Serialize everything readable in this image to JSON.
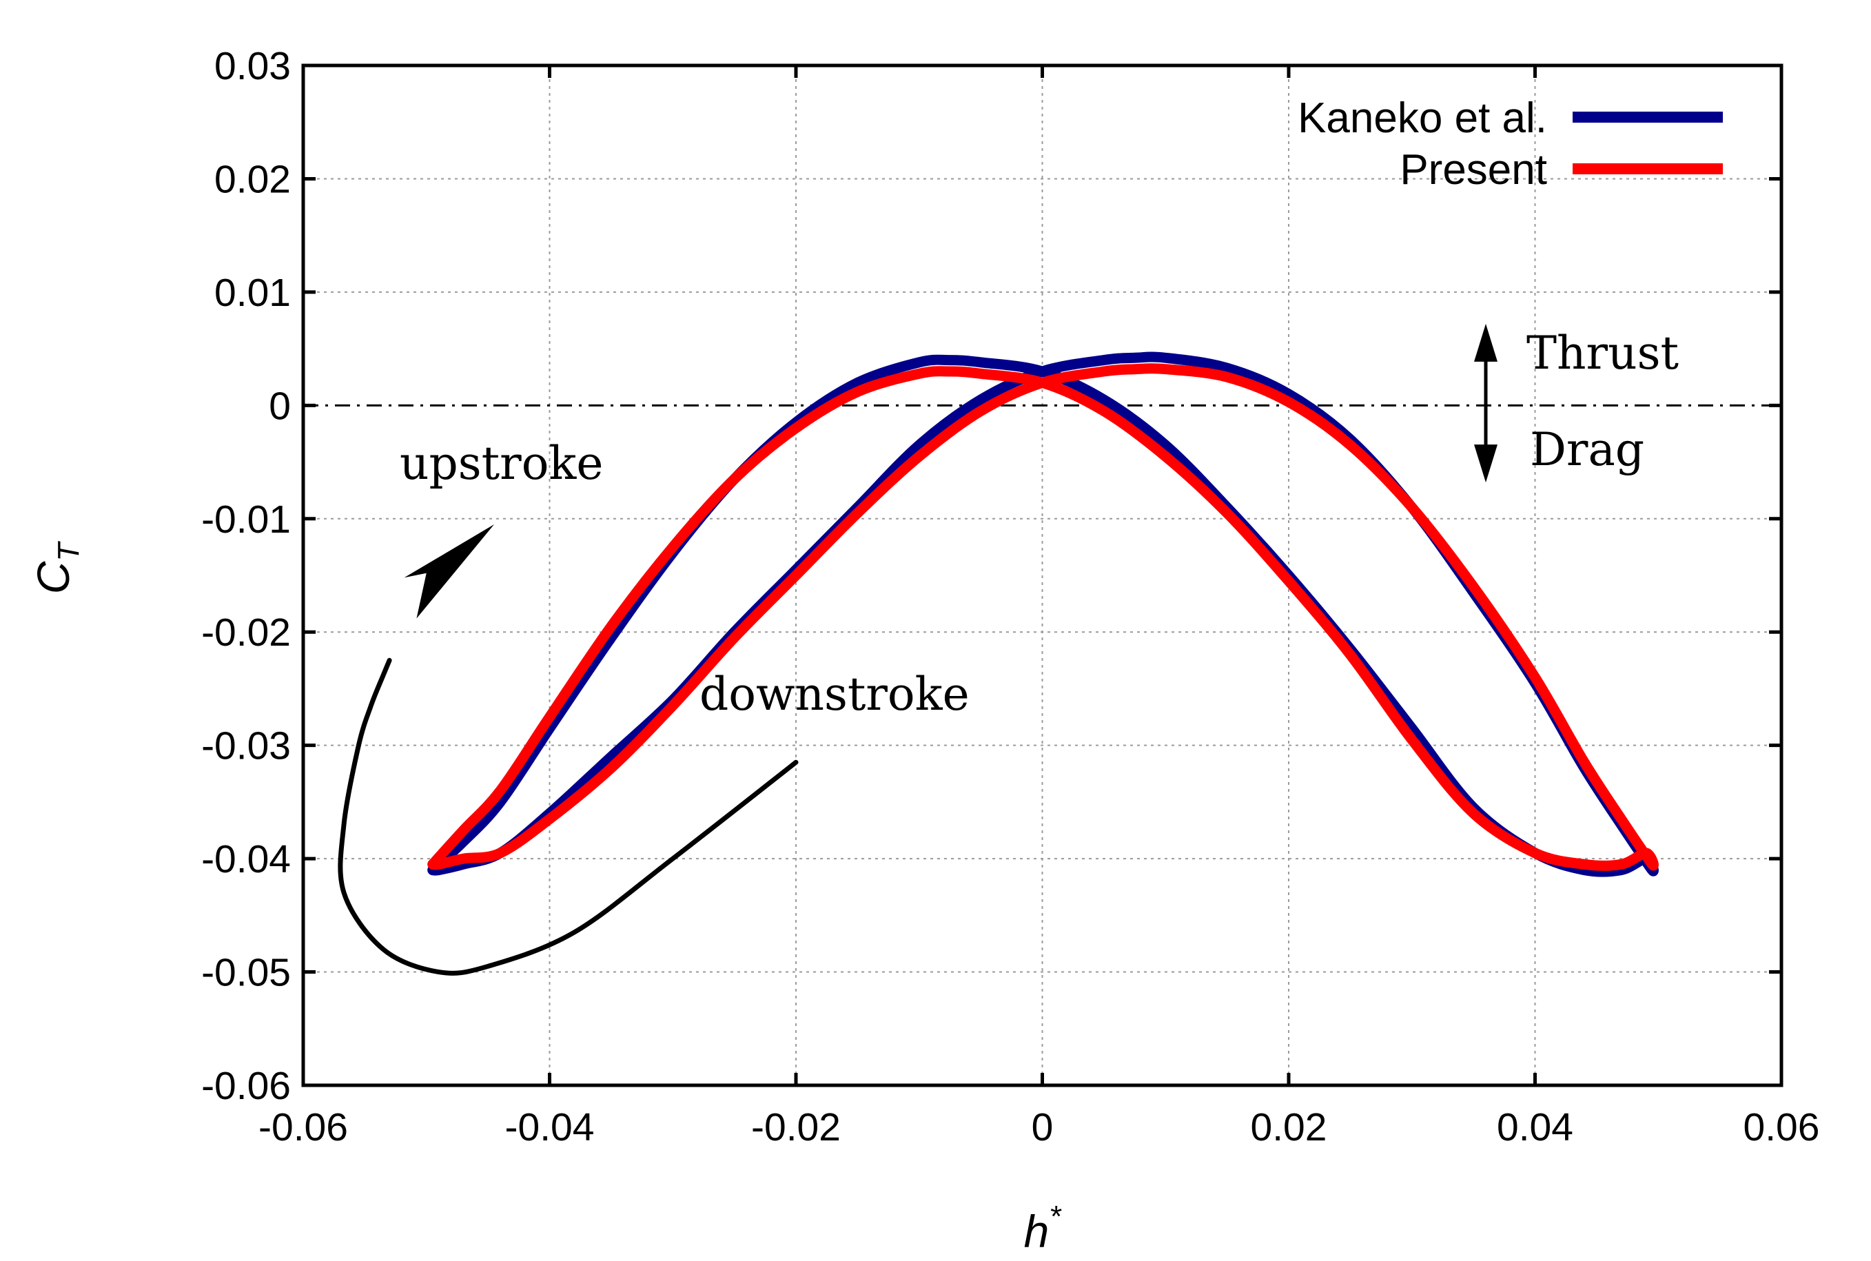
{
  "chart_data": {
    "type": "line",
    "xlabel_base": "h",
    "xlabel_sup": "*",
    "ylabel_base": "C",
    "ylabel_sub": "T",
    "xlim": [
      -0.06,
      0.06
    ],
    "ylim": [
      -0.06,
      0.03
    ],
    "xticks": [
      -0.06,
      -0.04,
      -0.02,
      0,
      0.02,
      0.04,
      0.06
    ],
    "xtick_labels": [
      "-0.06",
      "-0.04",
      "-0.02",
      "0",
      "0.02",
      "0.04",
      "0.06"
    ],
    "yticks": [
      0.03,
      0.02,
      0.01,
      0,
      -0.01,
      -0.02,
      -0.03,
      -0.04,
      -0.05,
      -0.06
    ],
    "ytick_labels": [
      "0.03",
      "0.02",
      "0.01",
      "0",
      "-0.01",
      "-0.02",
      "-0.03",
      "-0.04",
      "-0.05",
      "-0.06"
    ],
    "grid": true,
    "legend_position": "top-right",
    "series": [
      {
        "name": "Kaneko et al.",
        "color": "#00008b",
        "x": [
          -0.0495,
          -0.047,
          -0.044,
          -0.04,
          -0.035,
          -0.03,
          -0.025,
          -0.02,
          -0.015,
          -0.01,
          -0.0075,
          -0.005,
          0,
          0.005,
          0.01,
          0.015,
          0.02,
          0.025,
          0.03,
          0.035,
          0.04,
          0.044,
          0.047,
          0.049,
          0.0495,
          0.047,
          0.044,
          0.04,
          0.035,
          0.03,
          0.025,
          0.02,
          0.015,
          0.01,
          0.0075,
          0.005,
          0,
          -0.005,
          -0.01,
          -0.015,
          -0.02,
          -0.025,
          -0.03,
          -0.035,
          -0.04,
          -0.044,
          -0.047,
          -0.049,
          -0.0495
        ],
        "y": [
          -0.041,
          -0.0385,
          -0.035,
          -0.0285,
          -0.0205,
          -0.013,
          -0.0065,
          -0.0015,
          0.002,
          0.0038,
          0.004,
          0.0038,
          0.003,
          0.0005,
          -0.0035,
          -0.009,
          -0.015,
          -0.0215,
          -0.0285,
          -0.0355,
          -0.0395,
          -0.041,
          -0.041,
          -0.04,
          -0.041,
          -0.037,
          -0.032,
          -0.0245,
          -0.0165,
          -0.009,
          -0.003,
          0.001,
          0.0033,
          0.0042,
          0.0042,
          0.004,
          0.003,
          0.0005,
          -0.0035,
          -0.009,
          -0.0145,
          -0.02,
          -0.026,
          -0.031,
          -0.036,
          -0.0395,
          -0.0405,
          -0.041,
          -0.041
        ]
      },
      {
        "name": "Present",
        "color": "#ff0000",
        "x": [
          -0.0495,
          -0.047,
          -0.044,
          -0.04,
          -0.035,
          -0.03,
          -0.025,
          -0.02,
          -0.015,
          -0.01,
          -0.0075,
          -0.005,
          0,
          0.005,
          0.01,
          0.015,
          0.02,
          0.025,
          0.03,
          0.035,
          0.04,
          0.044,
          0.047,
          0.049,
          0.0495,
          0.047,
          0.044,
          0.04,
          0.035,
          0.03,
          0.025,
          0.02,
          0.015,
          0.01,
          0.0075,
          0.005,
          0,
          -0.005,
          -0.01,
          -0.015,
          -0.02,
          -0.025,
          -0.03,
          -0.035,
          -0.04,
          -0.044,
          -0.047,
          -0.049,
          -0.0495
        ],
        "y": [
          -0.0405,
          -0.0375,
          -0.034,
          -0.0275,
          -0.0195,
          -0.0125,
          -0.0065,
          -0.002,
          0.0012,
          0.0028,
          0.003,
          0.0028,
          0.002,
          -0.0005,
          -0.0045,
          -0.0095,
          -0.0155,
          -0.022,
          -0.0295,
          -0.036,
          -0.0395,
          -0.0405,
          -0.0405,
          -0.0395,
          -0.0405,
          -0.0365,
          -0.0315,
          -0.024,
          -0.016,
          -0.009,
          -0.0035,
          0.0003,
          0.0025,
          0.0032,
          0.0032,
          0.003,
          0.002,
          -0.0005,
          -0.0045,
          -0.0095,
          -0.015,
          -0.0205,
          -0.0265,
          -0.032,
          -0.0365,
          -0.0395,
          -0.04,
          -0.0405,
          -0.0405
        ]
      }
    ],
    "annotations": {
      "upstroke": "upstroke",
      "downstroke": "downstroke",
      "thrust": "Thrust",
      "drag": "Drag"
    },
    "arrow_path": [
      [
        -0.02,
        -0.0315
      ],
      [
        -0.03,
        -0.04
      ],
      [
        -0.038,
        -0.0465
      ],
      [
        -0.045,
        -0.0495
      ],
      [
        -0.049,
        -0.05
      ],
      [
        -0.0535,
        -0.048
      ],
      [
        -0.0567,
        -0.043
      ],
      [
        -0.0567,
        -0.037
      ],
      [
        -0.0555,
        -0.03
      ],
      [
        -0.0545,
        -0.0265
      ],
      [
        -0.0535,
        -0.0238
      ],
      [
        -0.053,
        -0.0225
      ]
    ],
    "thrust_drag_x": 0.036
  }
}
